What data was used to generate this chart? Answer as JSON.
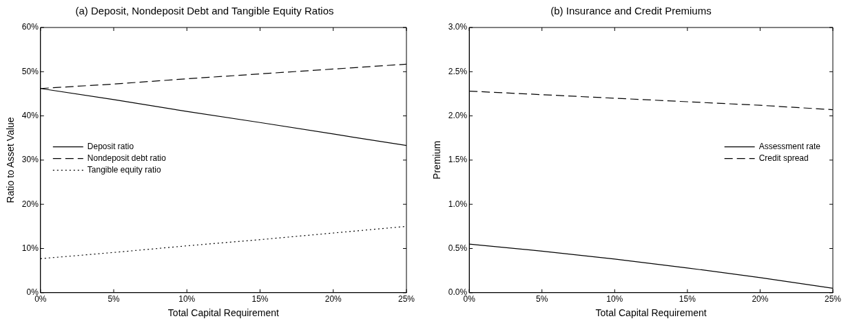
{
  "chart_data": [
    {
      "type": "line",
      "title": "(a) Deposit, Nondeposit Debt and Tangible Equity Ratios",
      "xlabel": "Total Capital Requirement",
      "ylabel": "Ratio to Asset Value",
      "x": [
        0,
        5,
        10,
        15,
        20,
        25
      ],
      "xlim": [
        0,
        25
      ],
      "xticks": [
        {
          "value": 0,
          "label": "0%"
        },
        {
          "value": 5,
          "label": "5%"
        },
        {
          "value": 10,
          "label": "10%"
        },
        {
          "value": 15,
          "label": "15%"
        },
        {
          "value": 20,
          "label": "20%"
        },
        {
          "value": 25,
          "label": "25%"
        }
      ],
      "ylim": [
        0,
        60
      ],
      "yticks": [
        {
          "value": 0,
          "label": "0%"
        },
        {
          "value": 10,
          "label": "10%"
        },
        {
          "value": 20,
          "label": "20%"
        },
        {
          "value": 30,
          "label": "30%"
        },
        {
          "value": 40,
          "label": "40%"
        },
        {
          "value": 50,
          "label": "50%"
        },
        {
          "value": 60,
          "label": "60%"
        }
      ],
      "grid": false,
      "legend": "left",
      "marker": "none",
      "series": [
        {
          "name": "Deposit ratio",
          "color": "#000000",
          "line_style": "solid",
          "values": [
            46.2,
            43.7,
            41.0,
            38.5,
            35.9,
            33.3
          ]
        },
        {
          "name": "Nondeposit debt ratio",
          "color": "#000000",
          "line_style": "dashed",
          "values": [
            46.2,
            47.2,
            48.4,
            49.5,
            50.6,
            51.7
          ]
        },
        {
          "name": "Tangible equity ratio",
          "color": "#000000",
          "line_style": "dotted",
          "values": [
            7.7,
            9.1,
            10.6,
            12.0,
            13.5,
            15.0
          ]
        }
      ]
    },
    {
      "type": "line",
      "title": "(b) Insurance and Credit Premiums",
      "xlabel": "Total Capital Requirement",
      "ylabel": "Premium",
      "x": [
        0,
        5,
        10,
        15,
        20,
        25
      ],
      "xlim": [
        0,
        25
      ],
      "xticks": [
        {
          "value": 0,
          "label": "0%"
        },
        {
          "value": 5,
          "label": "5%"
        },
        {
          "value": 10,
          "label": "10%"
        },
        {
          "value": 15,
          "label": "15%"
        },
        {
          "value": 20,
          "label": "20%"
        },
        {
          "value": 25,
          "label": "25%"
        }
      ],
      "ylim": [
        0,
        3
      ],
      "yticks": [
        {
          "value": 0,
          "label": "0.0%"
        },
        {
          "value": 0.5,
          "label": "0.5%"
        },
        {
          "value": 1,
          "label": "1.0%"
        },
        {
          "value": 1.5,
          "label": "1.5%"
        },
        {
          "value": 2,
          "label": "2.0%"
        },
        {
          "value": 2.5,
          "label": "2.5%"
        },
        {
          "value": 3,
          "label": "3.0%"
        }
      ],
      "grid": false,
      "legend": "right",
      "marker": "none",
      "series": [
        {
          "name": "Assessment rate",
          "color": "#000000",
          "line_style": "solid",
          "values": [
            0.55,
            0.47,
            0.38,
            0.28,
            0.17,
            0.05
          ]
        },
        {
          "name": "Credit spread",
          "color": "#000000",
          "line_style": "dashed",
          "values": [
            2.28,
            2.24,
            2.2,
            2.16,
            2.12,
            2.07
          ]
        }
      ]
    }
  ]
}
